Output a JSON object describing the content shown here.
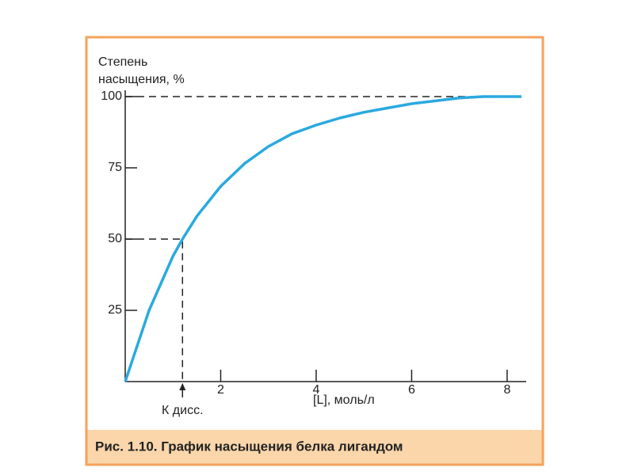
{
  "chart_data": {
    "type": "line",
    "caption": "Рис. 1.10. График насыщения белка лигандом",
    "y_label": [
      "Степень",
      "насыщения, %"
    ],
    "x_label": "[L], моль/л",
    "x": [
      0,
      0.5,
      1,
      1.2,
      1.5,
      2,
      2.5,
      3,
      3.5,
      4,
      4.5,
      5,
      5.5,
      6,
      6.5,
      7,
      7.5,
      8,
      8.3
    ],
    "values": [
      0,
      25,
      44,
      50,
      58,
      68.5,
      76.5,
      82.5,
      87,
      90,
      92.5,
      94.5,
      96,
      97.5,
      98.5,
      99.5,
      100,
      100,
      100
    ],
    "color": "#29a9e0",
    "xlim": [
      0,
      8.4
    ],
    "ylim": [
      0,
      100
    ],
    "xticks": [
      2,
      4,
      6,
      8
    ],
    "yticks": [
      25,
      50,
      75,
      100
    ],
    "annotations": [
      {
        "text": "К дисс.",
        "x": 1.2,
        "y": 50
      }
    ]
  }
}
